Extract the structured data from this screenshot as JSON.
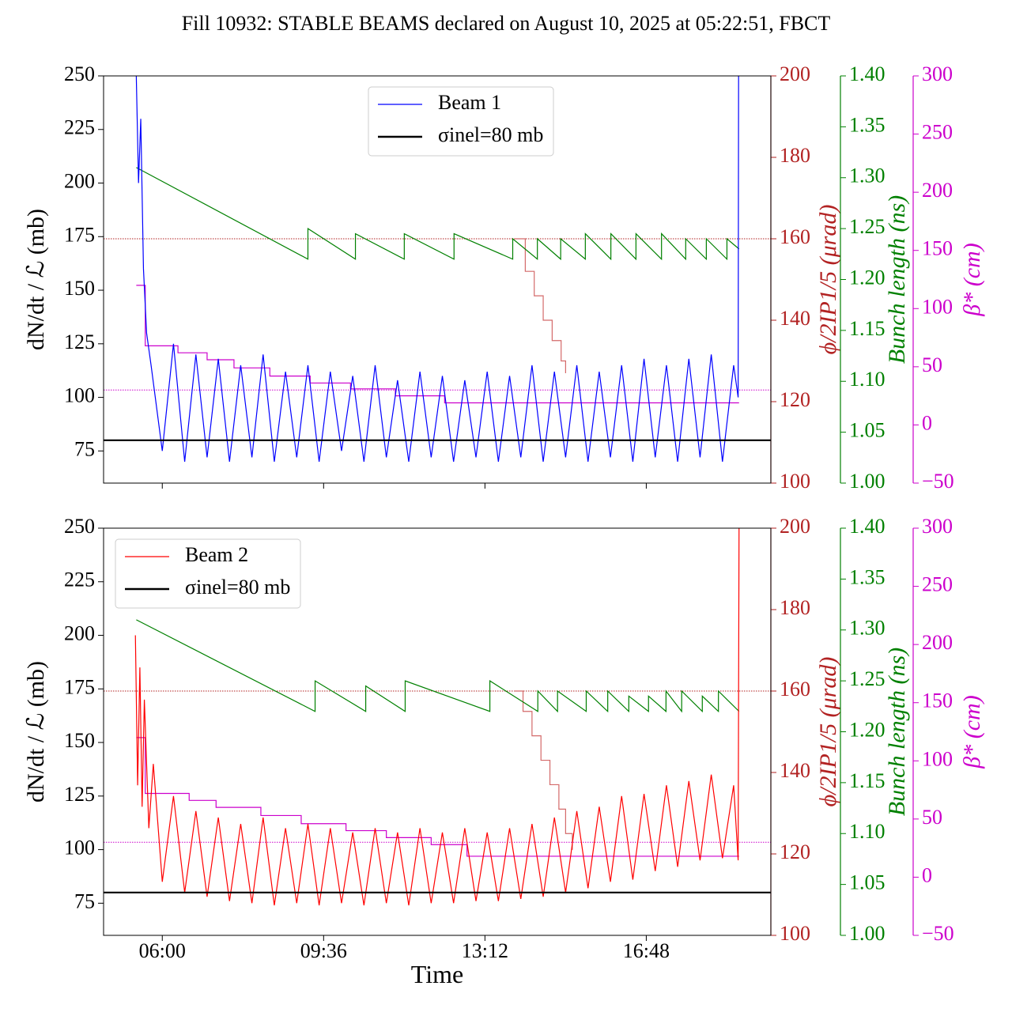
{
  "title": "Fill 10932: STABLE BEAMS declared on August 10, 2025 at 05:22:51, FBCT",
  "chart_data": [
    {
      "type": "line",
      "ylabel": "dN/dt / ℒ (mb)",
      "y2label": "ϕ/2IP1/5 (μrad)",
      "y3label": "Bunch length (ns)",
      "y4label": "β* (cm)",
      "legend": "upper center",
      "show_xticklabels": false,
      "xlim": [
        4.69,
        19.58
      ],
      "xticks": [
        6,
        9.6,
        13.2,
        16.8
      ],
      "ylim": [
        60,
        250
      ],
      "yticks": [
        75,
        100,
        125,
        150,
        175,
        200,
        225,
        250
      ],
      "y2lim": [
        100,
        200
      ],
      "y2ticks": [
        100,
        120,
        140,
        160,
        180,
        200
      ],
      "y3lim": [
        1,
        1.4
      ],
      "y3ticks": [
        {
          "value": 1,
          "label": "1.00"
        },
        1.05,
        {
          "value": 1.1,
          "label": "1.10"
        },
        1.15,
        {
          "value": 1.2,
          "label": "1.20"
        },
        1.25,
        {
          "value": 1.3,
          "label": "1.30"
        },
        1.35,
        {
          "value": 1.4,
          "label": "1.40"
        }
      ],
      "y4lim": [
        -50,
        300
      ],
      "y4ticks": [
        {
          "value": -50,
          "label": "−50"
        },
        0,
        50,
        100,
        150,
        200,
        250,
        300
      ],
      "hlines": [
        {
          "value": 160,
          "axis": "y2",
          "color": "#b22222"
        },
        {
          "value": 30,
          "axis": "y4",
          "color": "#cc00cc"
        }
      ],
      "series": [
        {
          "name": "Beam 1",
          "color": "#0000ff",
          "axis": "y",
          "x": [
            5.42,
            5.47,
            5.52,
            5.58,
            5.65,
            5.75,
            6.0,
            6.25,
            6.5,
            6.75,
            7.0,
            7.25,
            7.5,
            7.75,
            8.0,
            8.25,
            8.5,
            8.75,
            9.0,
            9.25,
            9.5,
            9.75,
            10.0,
            10.25,
            10.5,
            10.75,
            11.0,
            11.25,
            11.5,
            11.75,
            12.0,
            12.25,
            12.5,
            12.75,
            13.0,
            13.25,
            13.5,
            13.75,
            14.0,
            14.25,
            14.5,
            14.75,
            15.0,
            15.25,
            15.5,
            15.75,
            16.0,
            16.25,
            16.5,
            16.75,
            17.0,
            17.25,
            17.5,
            17.75,
            18.0,
            18.25,
            18.5,
            18.75,
            18.85,
            18.86
          ],
          "values": [
            250,
            200,
            230,
            160,
            130,
            115,
            75,
            125,
            70,
            120,
            72,
            118,
            70,
            115,
            72,
            120,
            70,
            112,
            72,
            115,
            70,
            112,
            75,
            110,
            70,
            115,
            72,
            108,
            70,
            112,
            72,
            110,
            70,
            108,
            72,
            112,
            70,
            110,
            72,
            115,
            70,
            112,
            72,
            115,
            70,
            112,
            72,
            115,
            70,
            118,
            72,
            115,
            70,
            118,
            72,
            120,
            70,
            115,
            100,
            250
          ]
        },
        {
          "name": "σinel=80 mb",
          "color": "#000000",
          "axis": "y",
          "x": [
            4.69,
            19.58
          ],
          "values": [
            80,
            80
          ]
        },
        {
          "color": "#d46a6a",
          "axis": "y2",
          "step": true,
          "x": [
            13.85,
            14.1,
            14.3,
            14.5,
            14.7,
            14.9,
            15.0
          ],
          "values": [
            160,
            152,
            146,
            140,
            135,
            130,
            127
          ]
        },
        {
          "color": "#008000",
          "axis": "y3",
          "x": [
            5.42,
            9.25,
            9.25,
            10.31,
            10.31,
            11.4,
            11.4,
            12.51,
            12.51,
            13.82,
            13.82,
            14.37,
            14.37,
            14.89,
            14.89,
            15.44,
            15.44,
            16.01,
            16.01,
            16.57,
            16.57,
            17.14,
            17.14,
            17.68,
            17.68,
            18.14,
            18.14,
            18.6,
            18.6,
            18.87
          ],
          "values": [
            1.31,
            1.22,
            1.25,
            1.22,
            1.245,
            1.22,
            1.245,
            1.22,
            1.245,
            1.22,
            1.24,
            1.22,
            1.24,
            1.22,
            1.24,
            1.22,
            1.245,
            1.22,
            1.245,
            1.22,
            1.245,
            1.22,
            1.245,
            1.22,
            1.24,
            1.22,
            1.24,
            1.22,
            1.24,
            1.23
          ]
        },
        {
          "color": "#cc00cc",
          "axis": "y4",
          "step": true,
          "x": [
            5.42,
            5.62,
            6.35,
            7.0,
            7.6,
            8.4,
            9.3,
            10.2,
            11.2,
            12.3,
            18.87
          ],
          "values": [
            120,
            68,
            62,
            56,
            49,
            42,
            36,
            31,
            25,
            19,
            19
          ]
        }
      ]
    },
    {
      "type": "line",
      "ylabel": "dN/dt / ℒ (mb)",
      "y2label": "ϕ/2IP1/5 (μrad)",
      "y3label": "Bunch length (ns)",
      "y4label": "β* (cm)",
      "xlabel": "Time",
      "legend": "upper left",
      "show_xticklabels": true,
      "xlim": [
        4.69,
        19.58
      ],
      "xticks": [
        {
          "value": 6,
          "label": "06:00"
        },
        {
          "value": 9.6,
          "label": "09:36"
        },
        {
          "value": 13.2,
          "label": "13:12"
        },
        {
          "value": 16.8,
          "label": "16:48"
        }
      ],
      "ylim": [
        60,
        250
      ],
      "yticks": [
        75,
        100,
        125,
        150,
        175,
        200,
        225,
        250
      ],
      "y2lim": [
        100,
        200
      ],
      "y2ticks": [
        100,
        120,
        140,
        160,
        180,
        200
      ],
      "y3lim": [
        1,
        1.4
      ],
      "y3ticks": [
        {
          "value": 1,
          "label": "1.00"
        },
        1.05,
        {
          "value": 1.1,
          "label": "1.10"
        },
        1.15,
        {
          "value": 1.2,
          "label": "1.20"
        },
        1.25,
        {
          "value": 1.3,
          "label": "1.30"
        },
        1.35,
        {
          "value": 1.4,
          "label": "1.40"
        }
      ],
      "y4lim": [
        -50,
        300
      ],
      "y4ticks": [
        {
          "value": -50,
          "label": "−50"
        },
        0,
        50,
        100,
        150,
        200,
        250,
        300
      ],
      "hlines": [
        {
          "value": 160,
          "axis": "y2",
          "color": "#b22222"
        },
        {
          "value": 30,
          "axis": "y4",
          "color": "#cc00cc"
        }
      ],
      "series": [
        {
          "name": "Beam 2",
          "color": "#ff0000",
          "axis": "y",
          "x": [
            5.4,
            5.45,
            5.5,
            5.55,
            5.6,
            5.7,
            5.8,
            6.0,
            6.25,
            6.5,
            6.75,
            7.0,
            7.25,
            7.5,
            7.75,
            8.0,
            8.25,
            8.5,
            8.75,
            9.0,
            9.25,
            9.5,
            9.75,
            10.0,
            10.25,
            10.5,
            10.75,
            11.0,
            11.25,
            11.5,
            11.75,
            12.0,
            12.25,
            12.5,
            12.75,
            13.0,
            13.25,
            13.5,
            13.75,
            14.0,
            14.25,
            14.5,
            14.75,
            15.0,
            15.25,
            15.5,
            15.75,
            16.0,
            16.25,
            16.5,
            16.75,
            17.0,
            17.25,
            17.5,
            17.75,
            18.0,
            18.25,
            18.5,
            18.75,
            18.85,
            18.87
          ],
          "values": [
            200,
            130,
            185,
            120,
            170,
            110,
            140,
            85,
            125,
            80,
            118,
            78,
            115,
            76,
            112,
            75,
            115,
            74,
            110,
            75,
            112,
            74,
            110,
            75,
            108,
            74,
            110,
            75,
            108,
            74,
            110,
            75,
            108,
            75,
            110,
            76,
            108,
            76,
            110,
            77,
            112,
            78,
            115,
            80,
            118,
            82,
            120,
            85,
            125,
            86,
            126,
            90,
            130,
            92,
            132,
            95,
            135,
            96,
            130,
            95,
            250
          ]
        },
        {
          "name": "σinel=80 mb",
          "color": "#000000",
          "axis": "y",
          "x": [
            4.69,
            19.58
          ],
          "values": [
            80,
            80
          ]
        },
        {
          "color": "#d46a6a",
          "axis": "y2",
          "step": true,
          "x": [
            13.85,
            14.05,
            14.25,
            14.45,
            14.65,
            14.85,
            15.0,
            15.15
          ],
          "values": [
            160,
            155,
            149,
            143,
            137,
            131,
            125,
            121
          ]
        },
        {
          "color": "#008000",
          "axis": "y3",
          "x": [
            5.42,
            9.41,
            9.41,
            10.54,
            10.54,
            11.42,
            11.42,
            13.31,
            13.31,
            14.38,
            14.38,
            14.82,
            14.82,
            15.46,
            15.46,
            15.94,
            15.94,
            16.41,
            16.41,
            16.85,
            16.85,
            17.24,
            17.24,
            17.59,
            17.59,
            18.05,
            18.05,
            18.41,
            18.41,
            18.87
          ],
          "values": [
            1.31,
            1.22,
            1.25,
            1.22,
            1.245,
            1.22,
            1.25,
            1.22,
            1.25,
            1.22,
            1.24,
            1.22,
            1.24,
            1.22,
            1.24,
            1.22,
            1.24,
            1.22,
            1.235,
            1.22,
            1.235,
            1.22,
            1.24,
            1.22,
            1.24,
            1.22,
            1.235,
            1.22,
            1.24,
            1.22
          ]
        },
        {
          "color": "#cc00cc",
          "axis": "y4",
          "step": true,
          "x": [
            5.42,
            5.62,
            6.6,
            7.2,
            8.2,
            9.1,
            10.1,
            11.0,
            12.0,
            12.8,
            18.87
          ],
          "values": [
            120,
            72,
            66,
            60,
            53,
            46,
            40,
            34,
            28,
            18,
            18
          ]
        }
      ]
    }
  ]
}
